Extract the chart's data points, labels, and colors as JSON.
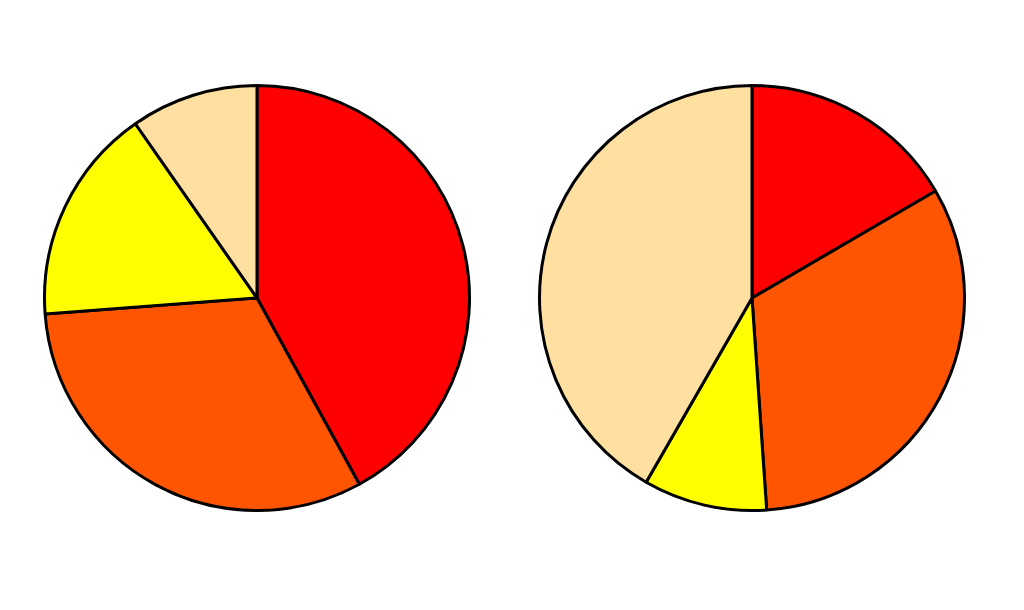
{
  "chart_data": [
    {
      "type": "pie",
      "categories": [
        null,
        null,
        null,
        null
      ],
      "values": [
        42,
        31.8,
        16.5,
        9.7
      ],
      "colors": [
        "#ff0000",
        "#ff5500",
        "#ffff00",
        "#ffe0a0"
      ],
      "legend": false
    },
    {
      "type": "pie",
      "categories": [
        null,
        null,
        null,
        null
      ],
      "values": [
        16.6,
        32.3,
        9.4,
        41.7
      ],
      "colors": [
        "#ff0000",
        "#ff5500",
        "#ffff00",
        "#ffe0a0"
      ],
      "legend": false
    }
  ]
}
